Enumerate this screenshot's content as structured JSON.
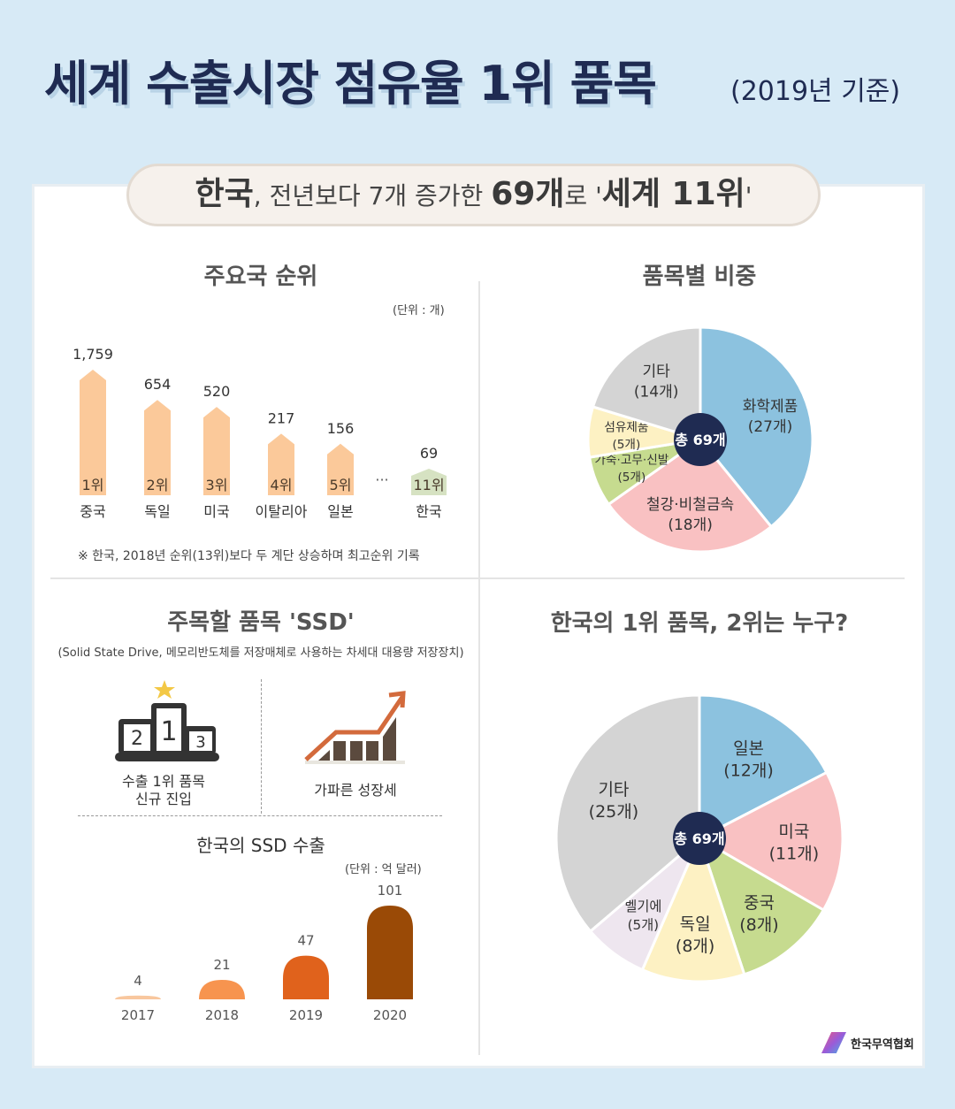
{
  "header": {
    "title": "세계 수출시장 점유율 1위 품목",
    "subtitle": "(2019년 기준)"
  },
  "banner": {
    "country": "한국",
    "part1": ", 전년보다 7개 증가한 ",
    "count": "69개",
    "part2": "로 '",
    "rank": "세계 11위",
    "part3": "'"
  },
  "colors": {
    "title": "#1f2b52",
    "bar": "#fbc99a",
    "korea_bar": "#d6e2c2",
    "center": "#1f2b52"
  },
  "chart_data": [
    {
      "type": "bar",
      "title": "주요국 순위",
      "unit": "(단위 : 개)",
      "categories": [
        "중국",
        "독일",
        "미국",
        "이탈리아",
        "일본",
        "한국"
      ],
      "values": [
        1759,
        654,
        520,
        217,
        156,
        69
      ],
      "value_labels": [
        "1,759",
        "654",
        "520",
        "217",
        "156",
        "69"
      ],
      "rank_labels": [
        "1위",
        "2위",
        "3위",
        "4위",
        "5위",
        "11위"
      ],
      "ellipsis": "···",
      "note": "※ 한국, 2018년 순위(13위)보다 두 계단 상승하며 최고순위 기록"
    },
    {
      "type": "pie",
      "title": "품목별 비중",
      "center_label": "총 69개",
      "slices": [
        {
          "name": "화학제품",
          "label": "(27개)",
          "value": 27,
          "color": "#8cc2df"
        },
        {
          "name": "철강·비철금속",
          "label": "(18개)",
          "value": 18,
          "color": "#f9c1c2"
        },
        {
          "name": "가죽·고무·신발",
          "label": "(5개)",
          "value": 5,
          "color": "#c6db8f"
        },
        {
          "name": "섬유제품",
          "label": "(5개)",
          "value": 5,
          "color": "#fdf1c3"
        },
        {
          "name": "기타",
          "label": "(14개)",
          "value": 14,
          "color": "#d4d4d4"
        }
      ]
    },
    {
      "type": "bar",
      "title": "한국의 SSD 수출",
      "unit": "(단위 : 억 달러)",
      "categories": [
        "2017",
        "2018",
        "2019",
        "2020"
      ],
      "values": [
        4,
        21,
        47,
        101
      ],
      "colors": [
        "#f8c79e",
        "#f7944f",
        "#e0621c",
        "#9a4a06"
      ]
    },
    {
      "type": "pie",
      "title": "한국의 1위 품목, 2위는 누구?",
      "center_label": "총 69개",
      "slices": [
        {
          "name": "일본",
          "label": "(12개)",
          "value": 12,
          "color": "#8cc2df"
        },
        {
          "name": "미국",
          "label": "(11개)",
          "value": 11,
          "color": "#f9c1c2"
        },
        {
          "name": "중국",
          "label": "(8개)",
          "value": 8,
          "color": "#c6db8f"
        },
        {
          "name": "독일",
          "label": "(8개)",
          "value": 8,
          "color": "#fdf1c3"
        },
        {
          "name": "벨기에",
          "label": "(5개)",
          "value": 5,
          "color": "#eee6ef"
        },
        {
          "name": "기타",
          "label": "(25개)",
          "value": 25,
          "color": "#d4d4d4"
        }
      ]
    }
  ],
  "ssd": {
    "title": "주목할 품목 'SSD'",
    "desc": "(Solid State Drive, 메모리반도체를 저장매체로 사용하는 차세대 대용량 저장장치)",
    "feature1_line1": "수출 1위 품목",
    "feature1_line2": "신규 진입",
    "feature2": "가파른 성장세",
    "podium": [
      "2",
      "1",
      "3"
    ]
  },
  "footer": {
    "logo_text": "한국무역협회"
  }
}
